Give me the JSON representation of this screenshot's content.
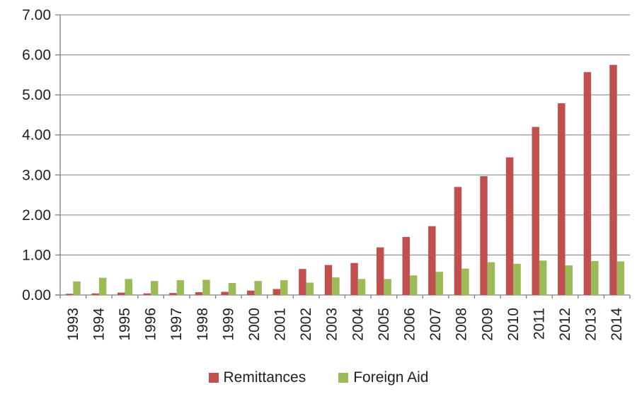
{
  "chart_data": {
    "type": "bar",
    "title": "",
    "categories": [
      "1993",
      "1994",
      "1995",
      "1996",
      "1997",
      "1998",
      "1999",
      "2000",
      "2001",
      "2002",
      "2003",
      "2004",
      "2005",
      "2006",
      "2007",
      "2008",
      "2009",
      "2010",
      "2011",
      "2012",
      "2013",
      "2014"
    ],
    "series": [
      {
        "name": "Remittances",
        "color": "#C0504D",
        "values": [
          0.03,
          0.04,
          0.06,
          0.04,
          0.05,
          0.07,
          0.08,
          0.11,
          0.15,
          0.65,
          0.75,
          0.8,
          1.19,
          1.45,
          1.72,
          2.7,
          2.97,
          3.44,
          4.2,
          4.79,
          5.57,
          5.75
        ]
      },
      {
        "name": "Foreign Aid",
        "color": "#9BBB59",
        "values": [
          0.34,
          0.43,
          0.4,
          0.35,
          0.37,
          0.38,
          0.3,
          0.35,
          0.37,
          0.31,
          0.44,
          0.4,
          0.4,
          0.49,
          0.58,
          0.66,
          0.82,
          0.78,
          0.86,
          0.74,
          0.85,
          0.84
        ]
      }
    ],
    "xlabel": "",
    "ylabel": "",
    "ylim": [
      0,
      7
    ],
    "y_ticks": [
      "0.00",
      "1.00",
      "2.00",
      "3.00",
      "4.00",
      "5.00",
      "6.00",
      "7.00"
    ],
    "grid": "horizontal",
    "legend_position": "bottom"
  },
  "colors": {
    "axis": "#808080",
    "gridline": "#979797",
    "tick": "#808080",
    "text": "#1f1f1f",
    "background": "#ffffff"
  }
}
